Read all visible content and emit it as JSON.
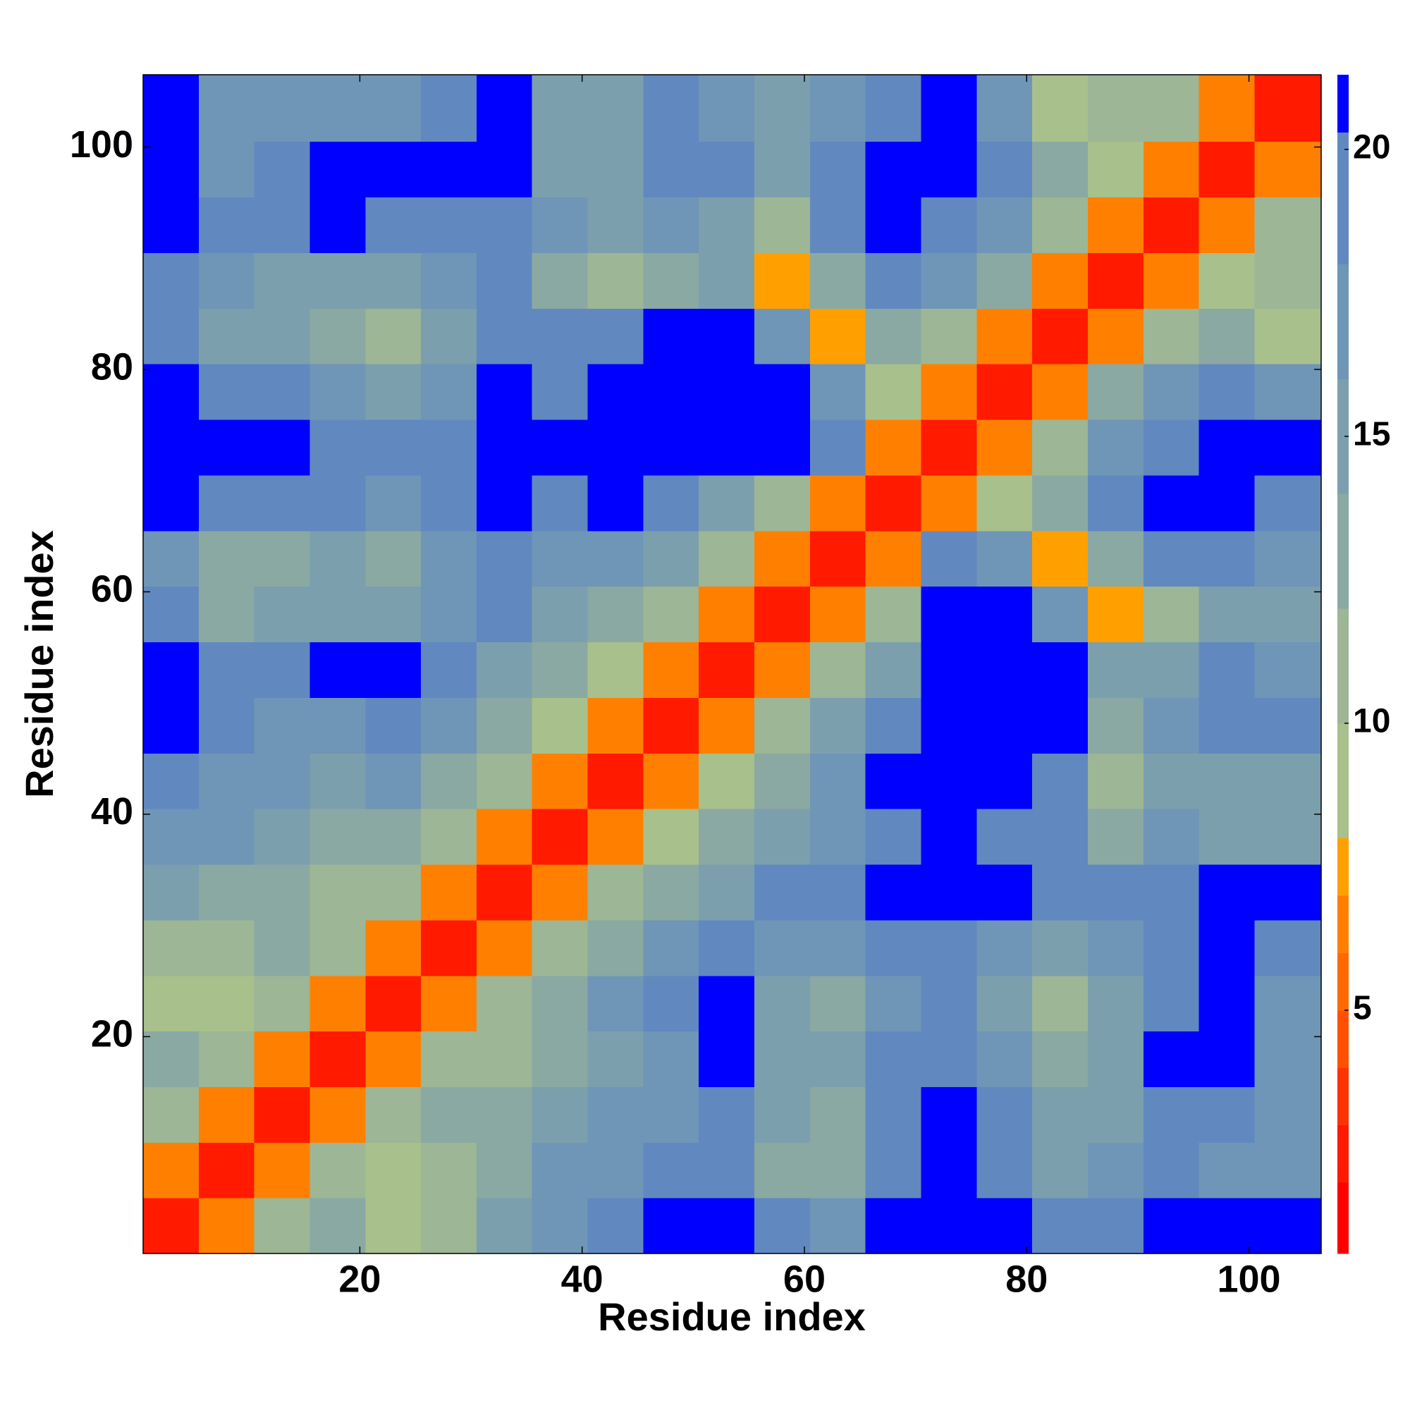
{
  "chart_data": {
    "type": "heatmap",
    "x_label": "Residue index",
    "y_label": "Residue index",
    "xlim": [
      0.5,
      106.5
    ],
    "ylim": [
      0.5,
      106.5
    ],
    "xticks": [
      20,
      40,
      60,
      80,
      100
    ],
    "yticks": [
      20,
      40,
      60,
      80,
      100
    ],
    "bins": [
      0.5,
      5.5,
      10.5,
      15.5,
      20.5,
      25.5,
      30.5,
      35.5,
      40.5,
      45.5,
      50.5,
      55.5,
      60.5,
      65.5,
      70.5,
      75.5,
      80.5,
      85.5,
      90.5,
      95.5,
      100.5,
      106.5
    ],
    "color_levels": [
      0.76,
      2,
      3,
      4,
      5,
      6,
      7,
      8,
      10,
      12,
      14,
      16,
      18,
      20.3,
      21.3
    ],
    "colors": [
      "#ff0000",
      "#ff1a00",
      "#ff3300",
      "#ff5000",
      "#ff6a00",
      "#ff8000",
      "#ffa000",
      "#a8c08c",
      "#9cb696",
      "#8aa9a2",
      "#7c9fae",
      "#6f95b7",
      "#6189bf",
      "#0000ff"
    ],
    "colorbar_ticks": [
      5,
      10,
      15,
      20
    ],
    "z": [
      [
        2.5,
        6,
        10,
        13,
        9,
        10,
        14,
        17,
        19,
        21,
        21,
        18,
        16,
        21,
        21,
        21,
        20,
        20,
        21,
        21,
        21
      ],
      [
        6,
        2.5,
        6,
        10,
        9,
        11,
        13,
        16,
        17,
        19,
        20,
        13,
        12,
        20,
        21,
        20,
        15,
        16,
        19,
        17,
        17
      ],
      [
        10,
        6,
        2.5,
        6,
        10,
        12,
        13,
        15,
        16,
        17,
        19,
        14,
        13,
        19,
        21,
        19,
        14,
        15,
        20,
        18,
        16
      ],
      [
        13,
        10,
        6,
        2.5,
        6,
        10,
        11,
        13,
        15,
        17,
        21,
        15,
        14,
        18,
        20,
        17,
        13,
        15,
        21,
        21,
        16
      ],
      [
        9,
        9,
        10,
        6,
        2.5,
        6,
        10,
        12,
        16,
        20,
        21,
        14,
        13,
        17,
        18,
        14,
        11,
        14,
        20,
        21,
        17
      ],
      [
        10,
        11,
        12,
        10,
        6,
        2.5,
        6,
        10,
        12,
        17,
        19,
        16,
        16,
        19,
        19,
        17,
        15,
        16,
        19,
        21,
        18
      ],
      [
        14,
        13,
        13,
        11,
        10,
        6,
        2.5,
        6,
        10,
        12,
        15,
        18,
        19,
        21,
        21,
        21,
        20,
        18,
        19,
        21,
        21
      ],
      [
        17,
        16,
        15,
        13,
        12,
        10,
        6,
        2.5,
        6,
        9,
        13,
        15,
        16,
        20,
        21,
        20,
        18,
        13,
        17,
        15,
        14
      ],
      [
        19,
        17,
        16,
        15,
        16,
        12,
        10,
        6,
        2.5,
        6,
        9,
        13,
        16,
        21,
        21,
        21,
        20,
        11,
        15,
        15,
        15
      ],
      [
        21,
        19,
        17,
        17,
        20,
        17,
        12,
        9,
        6,
        2.5,
        6,
        10,
        14,
        19,
        21,
        21,
        21,
        12,
        17,
        19,
        18
      ],
      [
        21,
        20,
        19,
        21,
        21,
        19,
        15,
        13,
        9,
        6,
        2.5,
        6,
        10,
        14,
        21,
        21,
        21,
        14,
        15,
        18,
        17
      ],
      [
        18,
        13,
        14,
        15,
        14,
        16,
        18,
        15,
        13,
        10,
        6,
        2.5,
        6,
        10,
        21,
        21,
        17,
        7,
        11,
        14,
        15
      ],
      [
        16,
        12,
        13,
        14,
        13,
        16,
        19,
        16,
        16,
        14,
        10,
        6,
        2.5,
        6,
        20,
        16,
        7,
        12,
        18,
        19,
        17
      ],
      [
        21,
        20,
        19,
        18,
        17,
        19,
        21,
        20,
        21,
        19,
        14,
        10,
        6,
        2.5,
        6,
        8,
        13,
        18,
        21,
        21,
        20
      ],
      [
        21,
        21,
        21,
        20,
        18,
        19,
        21,
        21,
        21,
        21,
        21,
        21,
        20,
        6,
        2.5,
        6,
        10,
        16,
        20,
        21,
        21
      ],
      [
        21,
        20,
        19,
        17,
        14,
        17,
        21,
        20,
        21,
        21,
        21,
        21,
        16,
        8,
        6,
        2.5,
        6,
        12,
        16,
        19,
        16
      ],
      [
        20,
        15,
        14,
        13,
        11,
        15,
        20,
        18,
        20,
        21,
        21,
        17,
        7,
        13,
        10,
        6,
        2.5,
        6,
        10,
        13,
        8
      ],
      [
        20,
        16,
        15,
        15,
        14,
        16,
        18,
        13,
        11,
        12,
        14,
        7,
        12,
        18,
        16,
        12,
        6,
        2.5,
        6,
        8,
        11
      ],
      [
        21,
        19,
        20,
        21,
        20,
        19,
        19,
        17,
        15,
        17,
        15,
        11,
        18,
        21,
        20,
        16,
        10,
        6,
        2.5,
        6,
        10
      ],
      [
        21,
        17,
        18,
        21,
        21,
        21,
        21,
        15,
        15,
        19,
        18,
        14,
        19,
        21,
        21,
        19,
        13,
        8,
        6,
        2.5,
        6
      ],
      [
        21,
        17,
        16,
        16,
        17,
        18,
        21,
        14,
        15,
        18,
        17,
        15,
        17,
        20,
        21,
        16,
        8,
        11,
        10,
        6,
        2.5
      ]
    ]
  }
}
